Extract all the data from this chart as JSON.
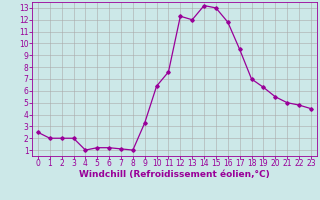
{
  "x": [
    0,
    1,
    2,
    3,
    4,
    5,
    6,
    7,
    8,
    9,
    10,
    11,
    12,
    13,
    14,
    15,
    16,
    17,
    18,
    19,
    20,
    21,
    22,
    23
  ],
  "y": [
    2.5,
    2.0,
    2.0,
    2.0,
    1.0,
    1.2,
    1.2,
    1.1,
    1.0,
    3.3,
    6.4,
    7.6,
    12.3,
    12.0,
    13.2,
    13.0,
    11.8,
    9.5,
    7.0,
    6.3,
    5.5,
    5.0,
    4.8,
    4.5
  ],
  "line_color": "#990099",
  "marker": "D",
  "marker_size": 1.8,
  "linewidth": 0.9,
  "bg_color": "#cce8e8",
  "grid_color": "#aaaaaa",
  "xlabel": "Windchill (Refroidissement éolien,°C)",
  "xlabel_color": "#990099",
  "xlabel_fontsize": 6.5,
  "tick_color": "#990099",
  "tick_fontsize": 5.5,
  "xlim": [
    -0.5,
    23.5
  ],
  "ylim": [
    0.5,
    13.5
  ],
  "yticks": [
    1,
    2,
    3,
    4,
    5,
    6,
    7,
    8,
    9,
    10,
    11,
    12,
    13
  ],
  "xticks": [
    0,
    1,
    2,
    3,
    4,
    5,
    6,
    7,
    8,
    9,
    10,
    11,
    12,
    13,
    14,
    15,
    16,
    17,
    18,
    19,
    20,
    21,
    22,
    23
  ]
}
